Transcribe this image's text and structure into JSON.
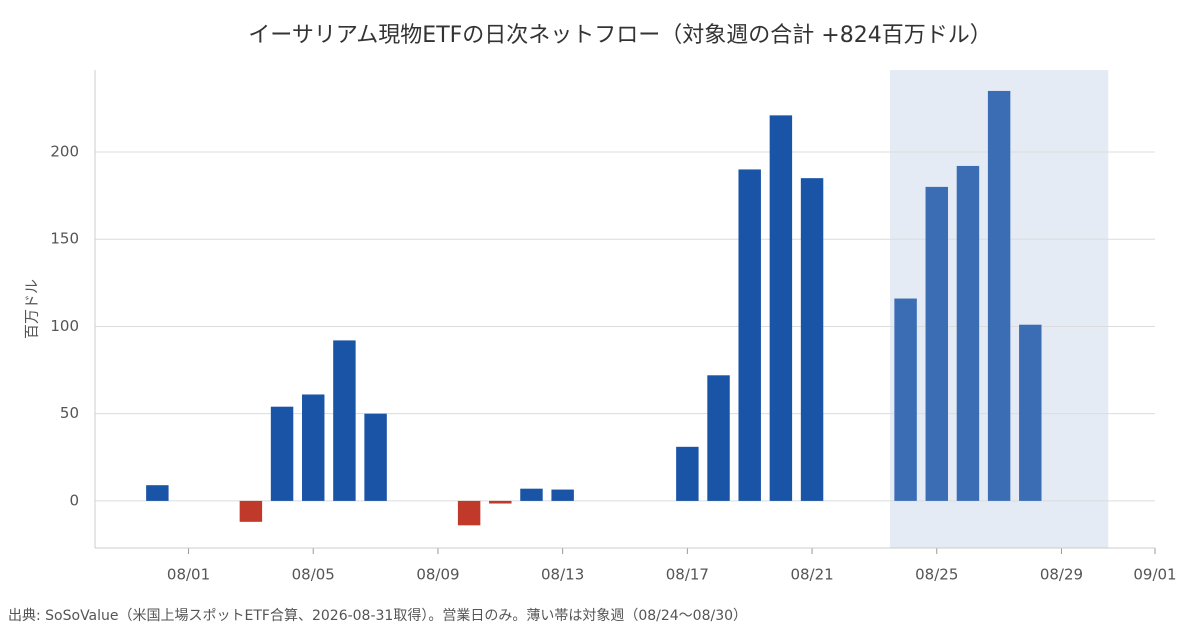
{
  "chart_data": {
    "type": "bar",
    "title": "イーサリアム現物ETFの日次ネットフロー（対象週の合計 +824百万ドル）",
    "ylabel": "百万ドル",
    "source": "出典: SoSoValue（米国上場スポットETF合算、2026-08-31取得）。営業日のみ。薄い帯は対象週（08/24〜08/30）",
    "x": [
      "07/31",
      "08/03",
      "08/04",
      "08/05",
      "08/06",
      "08/07",
      "08/10",
      "08/11",
      "08/12",
      "08/13",
      "08/17",
      "08/18",
      "08/19",
      "08/20",
      "08/21",
      "08/24",
      "08/25",
      "08/26",
      "08/27",
      "08/28"
    ],
    "values": [
      9,
      -12,
      54,
      61,
      92,
      50,
      -14,
      -1.5,
      7,
      6.5,
      31,
      72,
      190,
      221,
      185,
      116,
      180,
      192,
      235,
      101
    ],
    "colors": {
      "positive": "#1a54a6",
      "negative": "#c0392b",
      "highlight": "#3b6db4",
      "band": "#e5ebf4"
    },
    "highlight": [
      "08/24",
      "08/30"
    ],
    "xlim": [
      "07/29",
      "09/01"
    ],
    "xticks": [
      "08/01",
      "08/05",
      "08/09",
      "08/13",
      "08/17",
      "08/21",
      "08/25",
      "08/29",
      "09/01"
    ],
    "ylim": [
      -27,
      247
    ],
    "yticks": [
      0,
      50,
      100,
      150,
      200
    ],
    "grid": true
  }
}
